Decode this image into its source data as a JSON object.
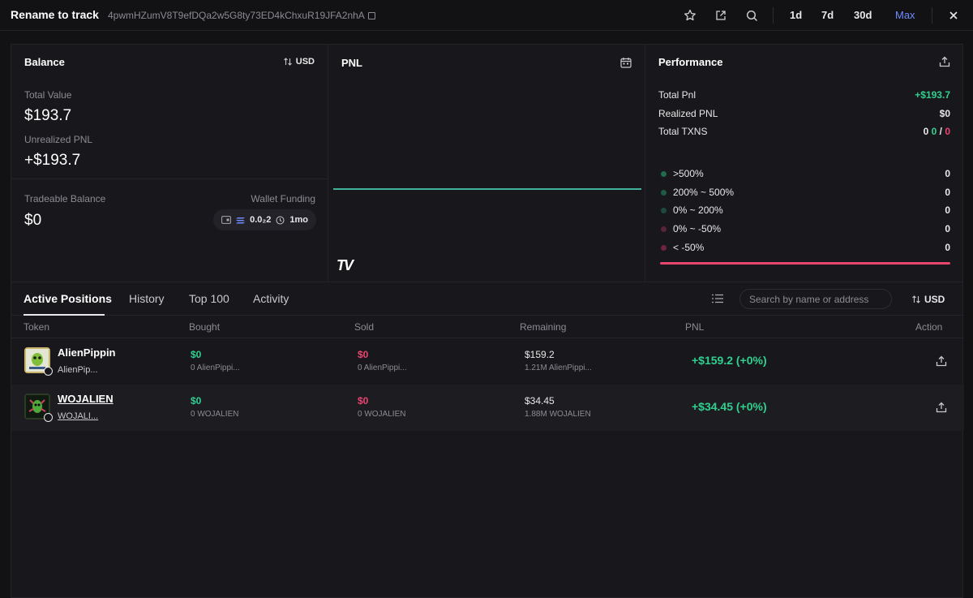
{
  "header": {
    "title": "Rename to track",
    "address": "4pwmHZumV8T9efDQa2w5G8ty73ED4kChxuR19JFA2nhA",
    "ranges": [
      "1d",
      "7d",
      "30d",
      "Max"
    ],
    "active_range": "Max"
  },
  "balance": {
    "title": "Balance",
    "currency": "USD",
    "total_value_label": "Total Value",
    "total_value": "$193.7",
    "unrealized_label": "Unrealized PNL",
    "unrealized_value": "+$193.7",
    "tradeable_label": "Tradeable Balance",
    "tradeable_value": "$0",
    "funding_label": "Wallet Funding",
    "funding_amount": "0.0₂2",
    "funding_age": "1mo"
  },
  "pnl": {
    "title": "PNL",
    "logo": "TV"
  },
  "performance": {
    "title": "Performance",
    "rows": [
      {
        "label": "Total Pnl",
        "value": "+$193.7"
      },
      {
        "label": "Realized PNL",
        "value": "$0"
      },
      {
        "label": "Total TXNS",
        "value": "0"
      }
    ],
    "txns_buys": "0",
    "txns_sep": "/",
    "txns_sells": "0",
    "buckets": [
      {
        "label": ">500%",
        "value": "0",
        "color": "#1f6b4a"
      },
      {
        "label": "200% ~ 500%",
        "value": "0",
        "color": "#1f5a45"
      },
      {
        "label": "0% ~ 200%",
        "value": "0",
        "color": "#1d4a3d"
      },
      {
        "label": "0% ~ -50%",
        "value": "0",
        "color": "#5a2438"
      },
      {
        "label": "< -50%",
        "value": "0",
        "color": "#6e2440"
      }
    ]
  },
  "tabs": {
    "items": [
      "Active Positions",
      "History",
      "Top 100",
      "Activity"
    ],
    "active": "Active Positions",
    "search_placeholder": "Search by name or address",
    "currency": "USD"
  },
  "table": {
    "columns": [
      "Token",
      "Bought",
      "Sold",
      "Remaining",
      "PNL",
      "Action"
    ],
    "rows": [
      {
        "name": "AlienPippin",
        "symbol": "AlienPip...",
        "bought": "$0",
        "bought_sub": "0 AlienPippi...",
        "sold": "$0",
        "sold_sub": "0 AlienPippi...",
        "remaining": "$159.2",
        "remaining_sub": "1.21M AlienPippi...",
        "pnl": "+$159.2 (+0%)"
      },
      {
        "name": "WOJALIEN",
        "symbol": "WOJALI...",
        "bought": "$0",
        "bought_sub": "0 WOJALIEN",
        "sold": "$0",
        "sold_sub": "0 WOJALIEN",
        "remaining": "$34.45",
        "remaining_sub": "1.88M WOJALIEN",
        "pnl": "+$34.45 (+0%)"
      }
    ]
  },
  "colors": {
    "accent": "#6f8cff",
    "positive": "#2fd08f",
    "negative": "#e8456f",
    "chart_line": "#3fb39a"
  }
}
